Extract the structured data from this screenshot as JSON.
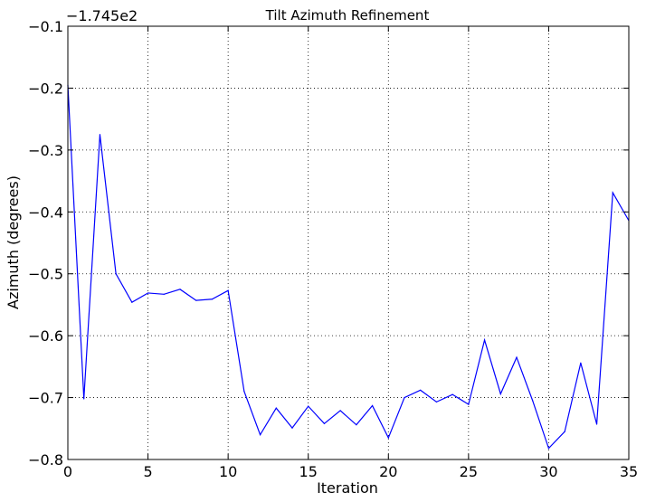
{
  "chart_data": {
    "type": "line",
    "title": "Tilt Azimuth Refinement",
    "xlabel": "Iteration",
    "ylabel": "Azimuth (degrees)",
    "y_offset_label": "−1.745e2",
    "xlim": [
      0,
      35
    ],
    "ylim": [
      -0.8,
      -0.1
    ],
    "x_ticks": [
      0,
      5,
      10,
      15,
      20,
      25,
      30,
      35
    ],
    "x_tick_labels": [
      "0",
      "5",
      "10",
      "15",
      "20",
      "25",
      "30",
      "35"
    ],
    "y_ticks": [
      -0.1,
      -0.2,
      -0.3,
      -0.4,
      -0.5,
      -0.6,
      -0.7,
      -0.8
    ],
    "y_tick_labels": [
      "−0.1",
      "−0.2",
      "−0.3",
      "−0.4",
      "−0.5",
      "−0.6",
      "−0.7",
      "−0.8"
    ],
    "grid": true,
    "grid_style": "dotted",
    "line_color": "#0000ff",
    "series": [
      {
        "x": [
          0,
          1,
          2,
          3,
          4,
          5,
          6,
          7,
          8,
          9,
          10,
          11,
          12,
          13,
          14,
          15,
          16,
          17,
          18,
          19,
          20,
          21,
          22,
          23,
          24,
          25,
          26,
          27,
          28,
          29,
          30,
          31,
          32,
          33,
          34,
          35
        ],
        "values": [
          -0.195,
          -0.702,
          -0.275,
          -0.5,
          -0.546,
          -0.531,
          -0.533,
          -0.525,
          -0.543,
          -0.541,
          -0.527,
          -0.69,
          -0.76,
          -0.717,
          -0.749,
          -0.714,
          -0.742,
          -0.721,
          -0.744,
          -0.713,
          -0.765,
          -0.7,
          -0.688,
          -0.707,
          -0.695,
          -0.711,
          -0.607,
          -0.694,
          -0.635,
          -0.705,
          -0.782,
          -0.755,
          -0.644,
          -0.743,
          -0.369,
          -0.414
        ]
      }
    ]
  }
}
